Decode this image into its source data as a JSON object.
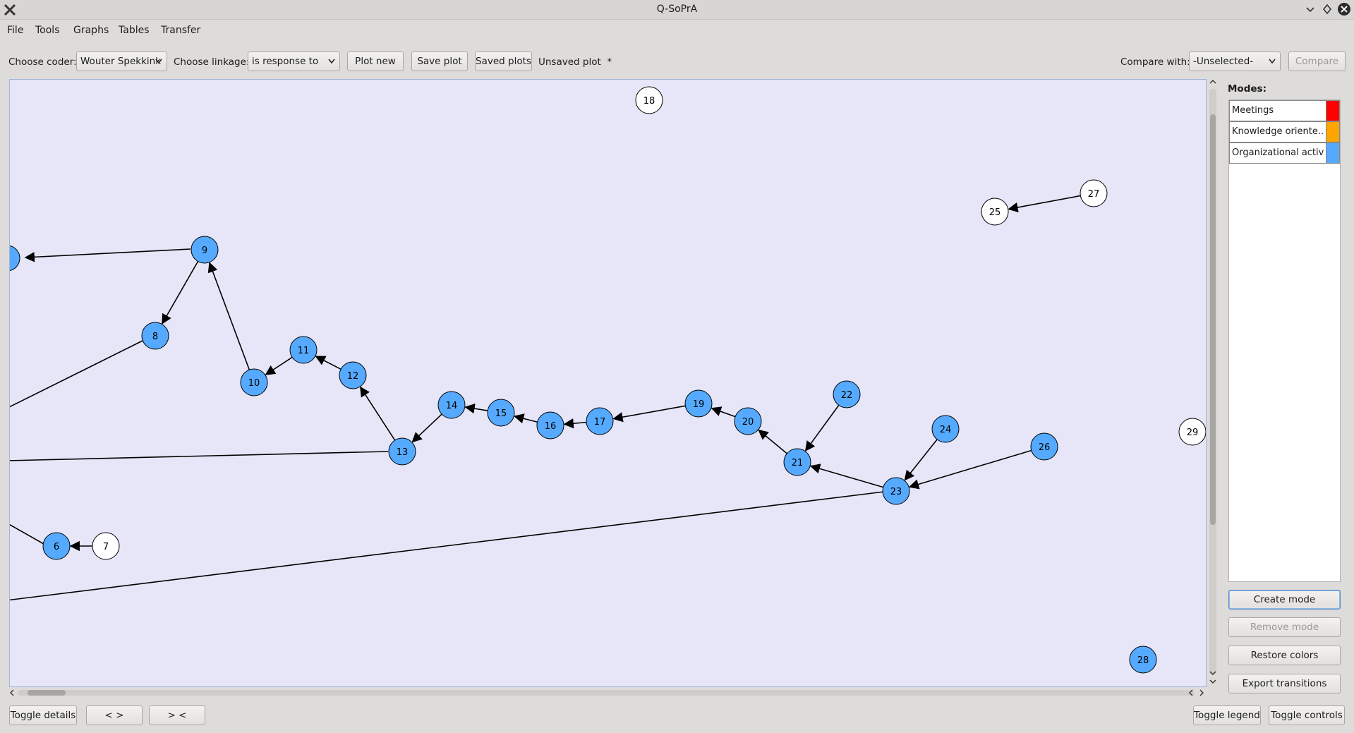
{
  "window": {
    "title": "Q-SoPrA"
  },
  "menu": {
    "file": "File",
    "tools": "Tools",
    "graphs": "Graphs",
    "tables": "Tables",
    "transfer": "Transfer"
  },
  "toolbar": {
    "coder_label": "Choose coder:",
    "coder_value": "Wouter Spekkink",
    "linkage_label": "Choose linkage:",
    "linkage_value": "is response to",
    "plot_new": "Plot new",
    "save_plot": "Save plot",
    "saved_plots": "Saved plots",
    "status": "Unsaved plot  *",
    "compare_label": "Compare with:",
    "compare_value": "-Unselected-",
    "compare_button": "Compare"
  },
  "modes": {
    "title": "Modes:",
    "items": [
      {
        "label": "Meetings",
        "color": "#ff0000"
      },
      {
        "label": "Knowledge oriente...",
        "color": "#ffa500"
      },
      {
        "label": "Organizational activ...",
        "color": "#55aaff"
      }
    ],
    "create": "Create mode",
    "remove": "Remove mode",
    "restore": "Restore colors",
    "export": "Export transitions"
  },
  "bottom": {
    "toggle_details": "Toggle details",
    "expand": "< >",
    "contract": "> <",
    "toggle_legend": "Toggle legend",
    "toggle_controls": "Toggle controls"
  },
  "graph": {
    "colors": {
      "blue": "#55aaff",
      "white": "#ffffff"
    },
    "nodes": [
      {
        "id": "6",
        "color": "blue"
      },
      {
        "id": "7",
        "color": "white"
      },
      {
        "id": "8",
        "color": "blue"
      },
      {
        "id": "9",
        "color": "blue"
      },
      {
        "id": "10",
        "color": "blue"
      },
      {
        "id": "11",
        "color": "blue"
      },
      {
        "id": "12",
        "color": "blue"
      },
      {
        "id": "13",
        "color": "blue"
      },
      {
        "id": "14",
        "color": "blue"
      },
      {
        "id": "15",
        "color": "blue"
      },
      {
        "id": "16",
        "color": "blue"
      },
      {
        "id": "17",
        "color": "blue"
      },
      {
        "id": "18",
        "color": "white"
      },
      {
        "id": "19",
        "color": "blue"
      },
      {
        "id": "20",
        "color": "blue"
      },
      {
        "id": "21",
        "color": "blue"
      },
      {
        "id": "22",
        "color": "blue"
      },
      {
        "id": "23",
        "color": "blue"
      },
      {
        "id": "24",
        "color": "blue"
      },
      {
        "id": "25",
        "color": "white"
      },
      {
        "id": "26",
        "color": "blue"
      },
      {
        "id": "27",
        "color": "white"
      },
      {
        "id": "28",
        "color": "blue"
      },
      {
        "id": "29",
        "color": "white"
      }
    ],
    "edges": [
      {
        "from": "7",
        "to": "6"
      },
      {
        "from": "9",
        "to": "8"
      },
      {
        "from": "10",
        "to": "9"
      },
      {
        "from": "11",
        "to": "10"
      },
      {
        "from": "12",
        "to": "11"
      },
      {
        "from": "13",
        "to": "12"
      },
      {
        "from": "14",
        "to": "13"
      },
      {
        "from": "15",
        "to": "14"
      },
      {
        "from": "16",
        "to": "15"
      },
      {
        "from": "17",
        "to": "16"
      },
      {
        "from": "19",
        "to": "17"
      },
      {
        "from": "20",
        "to": "19"
      },
      {
        "from": "21",
        "to": "20"
      },
      {
        "from": "22",
        "to": "21"
      },
      {
        "from": "23",
        "to": "21"
      },
      {
        "from": "24",
        "to": "23"
      },
      {
        "from": "26",
        "to": "23"
      },
      {
        "from": "27",
        "to": "25"
      }
    ]
  }
}
